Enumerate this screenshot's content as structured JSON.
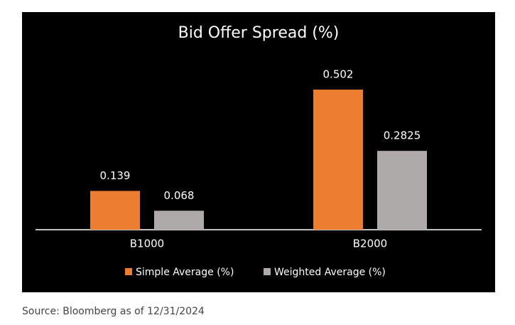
{
  "chart_data": {
    "type": "bar",
    "title": "Bid Offer Spread (%)",
    "categories": [
      "B1000",
      "B2000"
    ],
    "series": [
      {
        "name": "Simple Average (%)",
        "color": "#ed7d31",
        "values": [
          0.139,
          0.502
        ]
      },
      {
        "name": "Weighted Average (%)",
        "color": "#aeaaaa",
        "values": [
          0.068,
          0.2825
        ]
      }
    ],
    "legend": "bottom",
    "source": "Source: Bloomberg as of 12/31/2024"
  }
}
